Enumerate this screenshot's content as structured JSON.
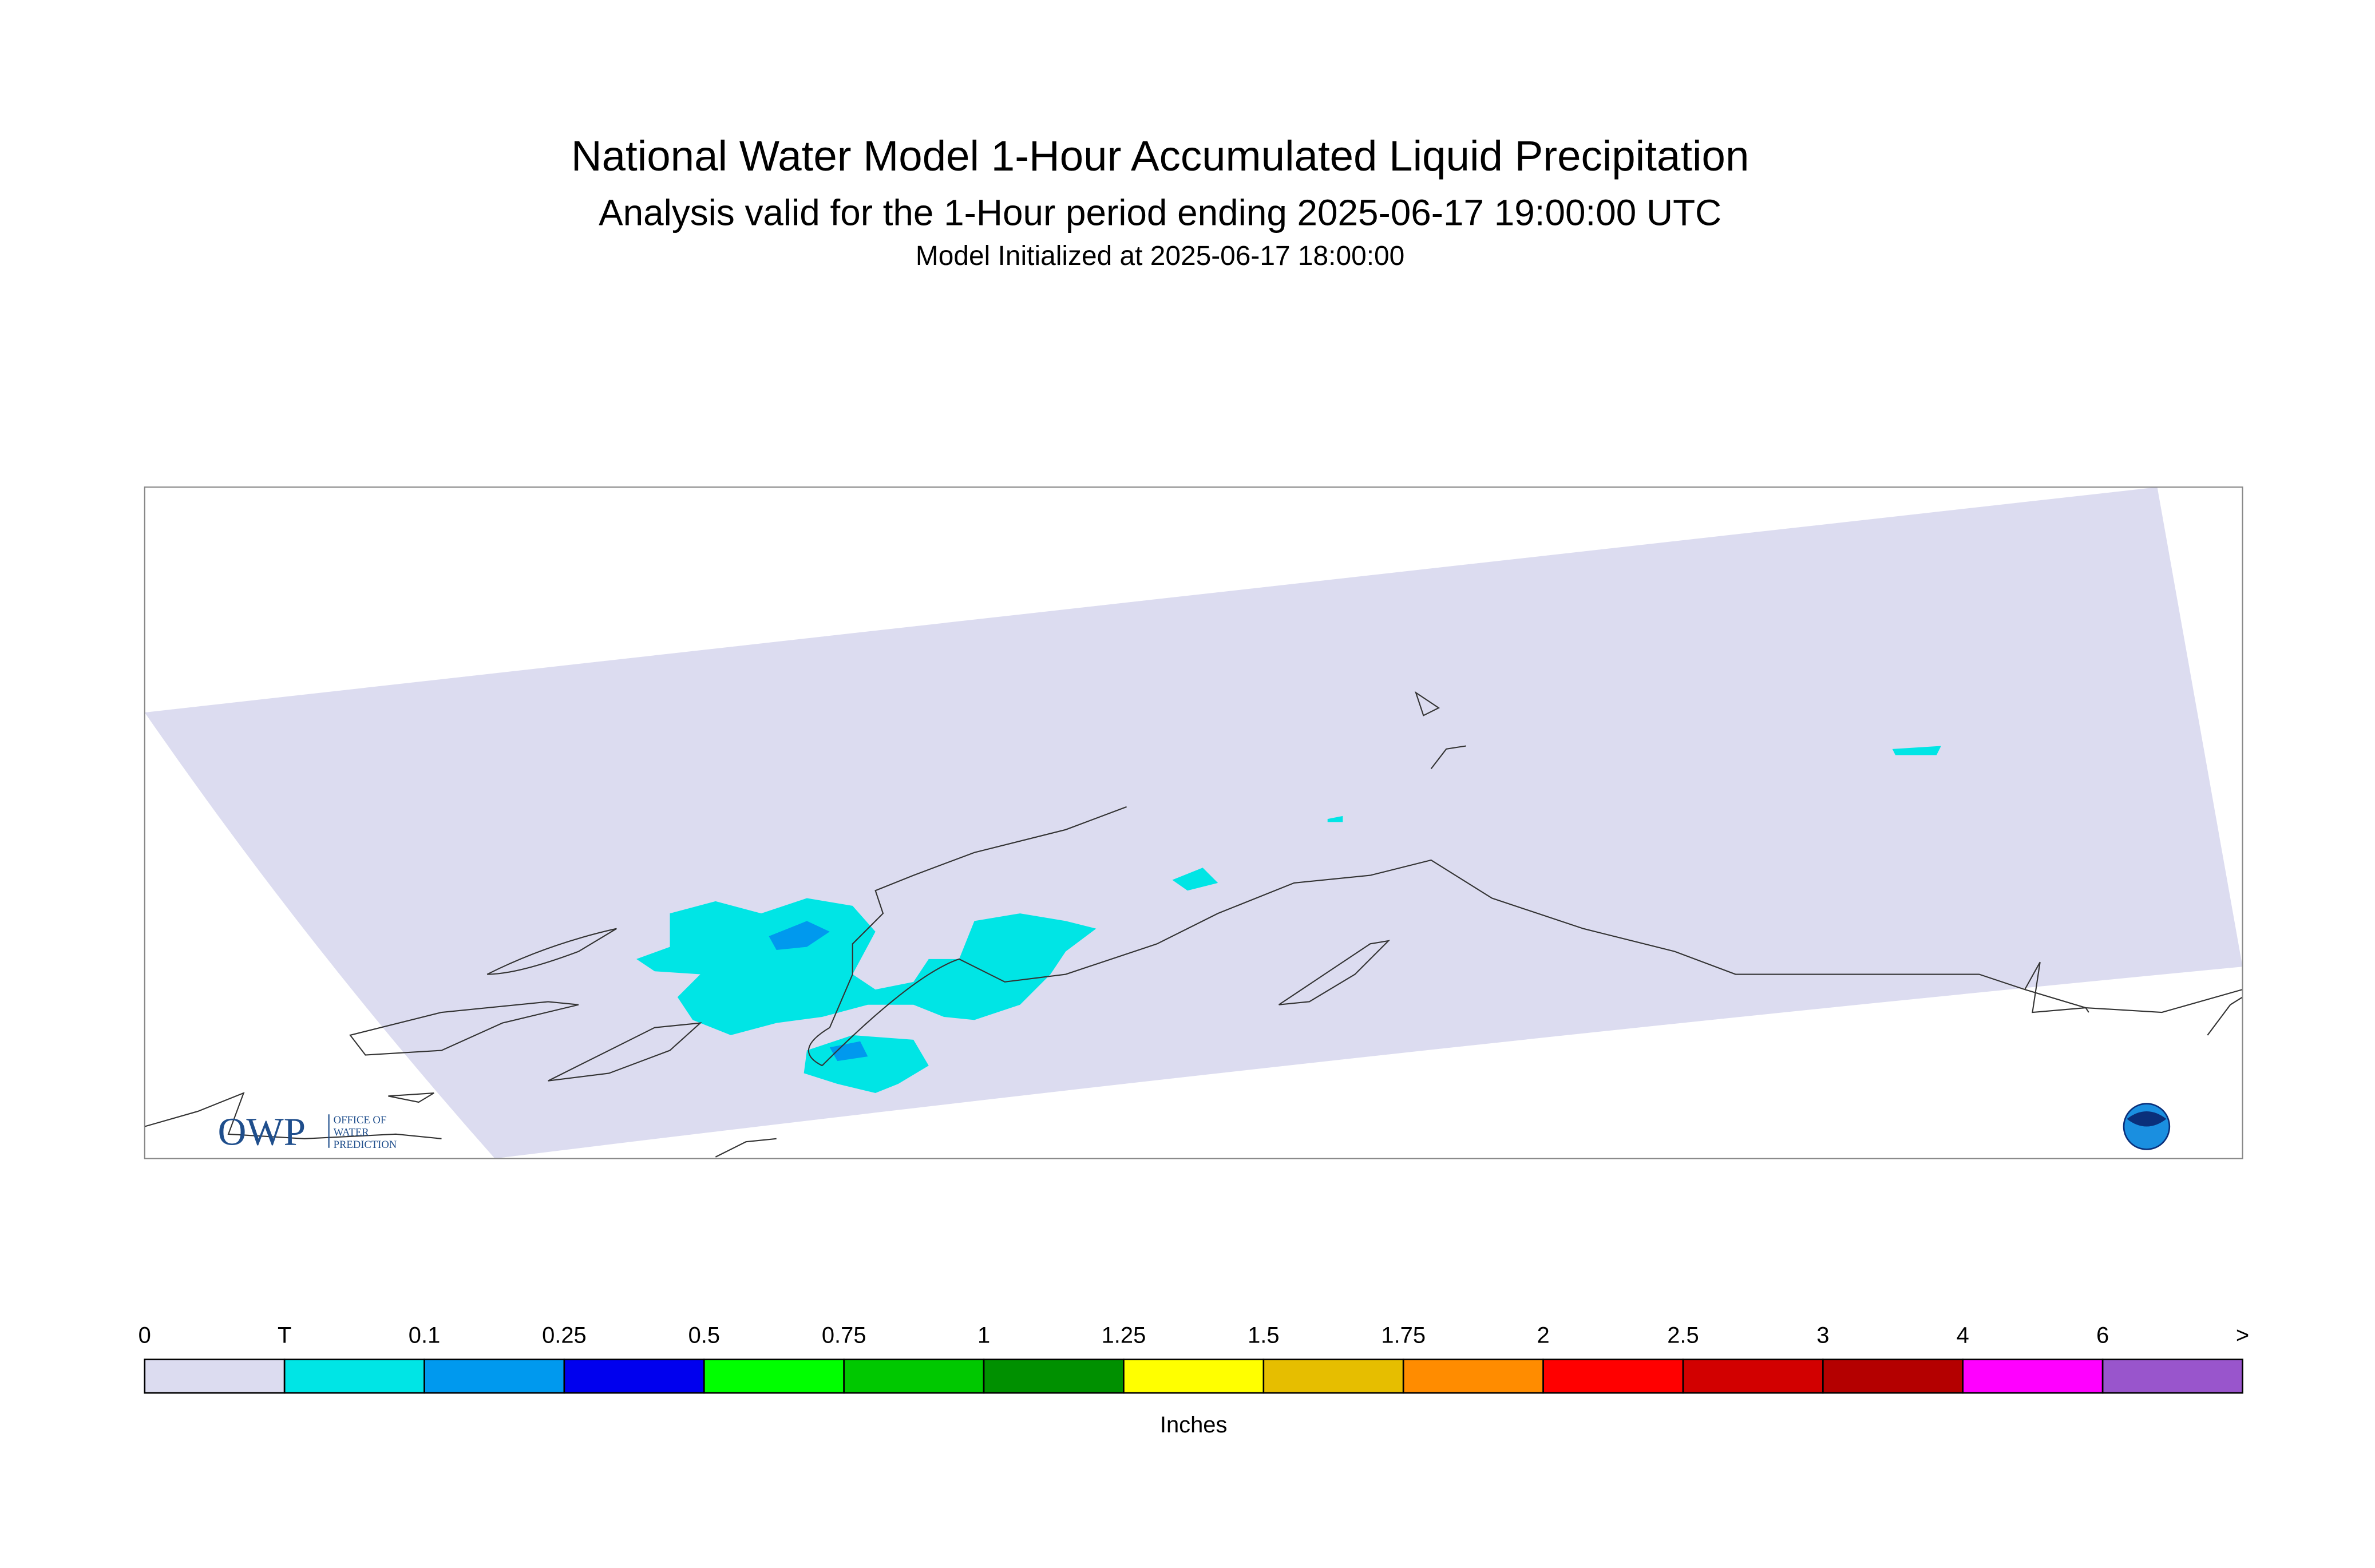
{
  "header": {
    "title": "National Water Model 1-Hour Accumulated Liquid Precipitation",
    "subtitle": "Analysis valid for the 1-Hour period ending 2025-06-17 19:00:00 UTC",
    "initialized": "Model Initialized at 2025-06-17 18:00:00"
  },
  "logo": {
    "acronym": "OWP",
    "line1": "OFFICE OF",
    "line2": "WATER",
    "line3": "PREDICTION"
  },
  "legend": {
    "labels": [
      "0",
      "T",
      "0.1",
      "0.25",
      "0.5",
      "0.75",
      "1",
      "1.25",
      "1.5",
      "1.75",
      "2",
      "2.5",
      "3",
      "4",
      "6",
      ">"
    ],
    "colors": [
      "#dcdcf0",
      "#00e5e5",
      "#0099ee",
      "#0000ee",
      "#00ff00",
      "#00c800",
      "#009000",
      "#ffff00",
      "#e6be00",
      "#ff8c00",
      "#ff0000",
      "#d20000",
      "#b40000",
      "#ff00ff",
      "#9955cc"
    ],
    "unit": "Inches"
  }
}
